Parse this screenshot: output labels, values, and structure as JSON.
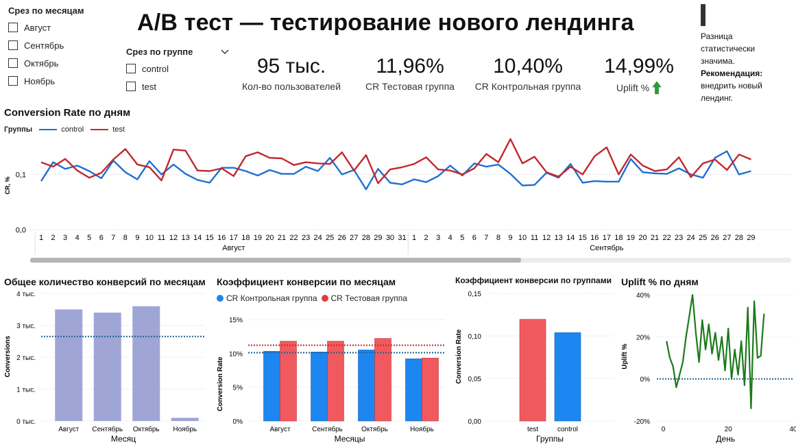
{
  "title": "A/B тест — тестирование нового лендинга",
  "month_slicer": {
    "title": "Срез по месяцам",
    "options": [
      "Август",
      "Сентябрь",
      "Октябрь",
      "Ноябрь"
    ]
  },
  "group_slicer": {
    "title": "Срез по группе",
    "options": [
      "control",
      "test"
    ]
  },
  "kpis": [
    {
      "value": "95 тыс.",
      "label": "Кол-во пользователей"
    },
    {
      "value": "11,96%",
      "label": "CR Тестовая группа"
    },
    {
      "value": "10,40%",
      "label": "CR Контрольная группа"
    },
    {
      "value": "14,99%",
      "label": "Uplift %"
    }
  ],
  "note": {
    "line1": "Разница статистически значима.",
    "rec_label": "Рекомендация",
    "rec_text": "внедрить новый лендинг."
  },
  "colors": {
    "control": "#1f6fd1",
    "test": "#c0282d",
    "bar_purple": "#9fa6d6",
    "bar_blue": "#1e86f0",
    "bar_red": "#f05a5e",
    "uplift_green": "#1a7a1a",
    "ref_line": "#1c5f8f"
  },
  "chart_data": [
    {
      "type": "line",
      "title": "Conversion Rate по дням",
      "legend_title": "Группы",
      "ylabel": "CR, %",
      "y_ticks": [
        "0,0",
        "0,1"
      ],
      "ylim": [
        0,
        0.16
      ],
      "months": [
        {
          "name": "Август",
          "days": [
            1,
            2,
            3,
            4,
            5,
            6,
            7,
            8,
            9,
            10,
            11,
            12,
            13,
            14,
            15,
            16,
            17,
            18,
            19,
            20,
            21,
            22,
            23,
            24,
            25,
            26,
            27,
            28,
            29,
            30,
            31
          ]
        },
        {
          "name": "Сентябрь",
          "days": [
            1,
            2,
            3,
            4,
            5,
            6,
            7,
            8,
            9,
            10,
            11,
            12,
            13,
            14,
            15,
            16,
            17,
            18,
            19,
            20,
            21,
            22,
            23,
            24,
            25,
            26,
            27,
            28,
            29
          ]
        }
      ],
      "series": [
        {
          "name": "control",
          "values": [
            0.088,
            0.122,
            0.11,
            0.116,
            0.106,
            0.093,
            0.125,
            0.104,
            0.091,
            0.124,
            0.1,
            0.118,
            0.101,
            0.09,
            0.085,
            0.112,
            0.112,
            0.106,
            0.098,
            0.108,
            0.101,
            0.101,
            0.114,
            0.106,
            0.13,
            0.1,
            0.108,
            0.073,
            0.11,
            0.085,
            0.082,
            0.091,
            0.086,
            0.097,
            0.116,
            0.098,
            0.12,
            0.114,
            0.118,
            0.101,
            0.08,
            0.081,
            0.103,
            0.094,
            0.119,
            0.085,
            0.088,
            0.087,
            0.087,
            0.128,
            0.104,
            0.102,
            0.101,
            0.111,
            0.1,
            0.094,
            0.13,
            0.142,
            0.1,
            0.106
          ]
        },
        {
          "name": "test",
          "values": [
            0.122,
            0.114,
            0.128,
            0.107,
            0.094,
            0.103,
            0.127,
            0.146,
            0.118,
            0.113,
            0.089,
            0.145,
            0.143,
            0.107,
            0.106,
            0.111,
            0.097,
            0.133,
            0.14,
            0.13,
            0.129,
            0.117,
            0.122,
            0.12,
            0.119,
            0.14,
            0.107,
            0.135,
            0.084,
            0.109,
            0.113,
            0.119,
            0.131,
            0.109,
            0.107,
            0.1,
            0.111,
            0.137,
            0.122,
            0.164,
            0.12,
            0.132,
            0.104,
            0.096,
            0.114,
            0.1,
            0.133,
            0.149,
            0.1,
            0.136,
            0.116,
            0.106,
            0.109,
            0.131,
            0.095,
            0.12,
            0.127,
            0.108,
            0.136,
            0.127
          ]
        }
      ]
    },
    {
      "type": "bar",
      "title": "Общее количество конверсий по месяцам",
      "xlabel": "Месяц",
      "ylabel": "Conversions",
      "categories": [
        "Август",
        "Сентябрь",
        "Октябрь",
        "Ноябрь"
      ],
      "values": [
        3500,
        3400,
        3600,
        100
      ],
      "ylim": [
        0,
        4000
      ],
      "y_ticks": [
        {
          "v": 0,
          "t": "0 тыс."
        },
        {
          "v": 1000,
          "t": "1 тыс."
        },
        {
          "v": 2000,
          "t": "2 тыс."
        },
        {
          "v": 3000,
          "t": "3 тыс."
        },
        {
          "v": 4000,
          "t": "4 тыс."
        }
      ],
      "reference_line": 2650
    },
    {
      "type": "bar",
      "title": "Коэффициент конверсии по месяцам",
      "xlabel": "Месяцы",
      "ylabel": "Conversion Rate",
      "categories": [
        "Август",
        "Сентябрь",
        "Октябрь",
        "Ноябрь"
      ],
      "series": [
        {
          "name": "CR Контрольная группа",
          "values": [
            10.3,
            10.2,
            10.5,
            9.2
          ]
        },
        {
          "name": "CR Тестовая группа",
          "values": [
            11.8,
            11.8,
            12.2,
            9.3
          ]
        }
      ],
      "ylim": [
        0,
        15
      ],
      "y_ticks": [
        {
          "v": 0,
          "t": "0%"
        },
        {
          "v": 5,
          "t": "5%"
        },
        {
          "v": 10,
          "t": "10%"
        },
        {
          "v": 15,
          "t": "15%"
        }
      ],
      "reference_lines": [
        10.1,
        11.2
      ]
    },
    {
      "type": "bar",
      "title": "Коэффициент конверсии по группами",
      "xlabel": "Группы",
      "ylabel": "Conversion Rate",
      "categories": [
        "test",
        "control"
      ],
      "values": [
        0.1196,
        0.104
      ],
      "ylim": [
        0,
        0.15
      ],
      "y_ticks": [
        {
          "v": 0,
          "t": "0,00"
        },
        {
          "v": 0.05,
          "t": "0,05"
        },
        {
          "v": 0.1,
          "t": "0,10"
        },
        {
          "v": 0.15,
          "t": "0,15"
        }
      ]
    },
    {
      "type": "line",
      "title": "Uplift % по дням",
      "xlabel": "День",
      "ylabel": "Uplift %",
      "xlim": [
        -2,
        40
      ],
      "ylim": [
        -20,
        40
      ],
      "x_ticks": [
        0,
        20,
        40
      ],
      "y_ticks": [
        {
          "v": -20,
          "t": "-20%"
        },
        {
          "v": 0,
          "t": "0%"
        },
        {
          "v": 20,
          "t": "20%"
        },
        {
          "v": 40,
          "t": "40%"
        }
      ],
      "reference_line": 0,
      "series": [
        {
          "name": "Uplift %",
          "x": [
            1,
            2,
            3,
            4,
            5,
            6,
            7,
            8,
            9,
            10,
            11,
            12,
            13,
            14,
            15,
            16,
            17,
            18,
            19,
            20,
            21,
            22,
            23,
            24,
            25,
            26,
            27,
            28,
            29,
            30,
            31
          ],
          "values": [
            18,
            10,
            6,
            -4,
            2,
            8,
            20,
            30,
            40,
            22,
            8,
            28,
            14,
            26,
            12,
            22,
            9,
            20,
            4,
            24,
            0,
            14,
            2,
            18,
            -3,
            34,
            -14,
            37,
            10,
            11,
            31
          ]
        }
      ]
    }
  ]
}
